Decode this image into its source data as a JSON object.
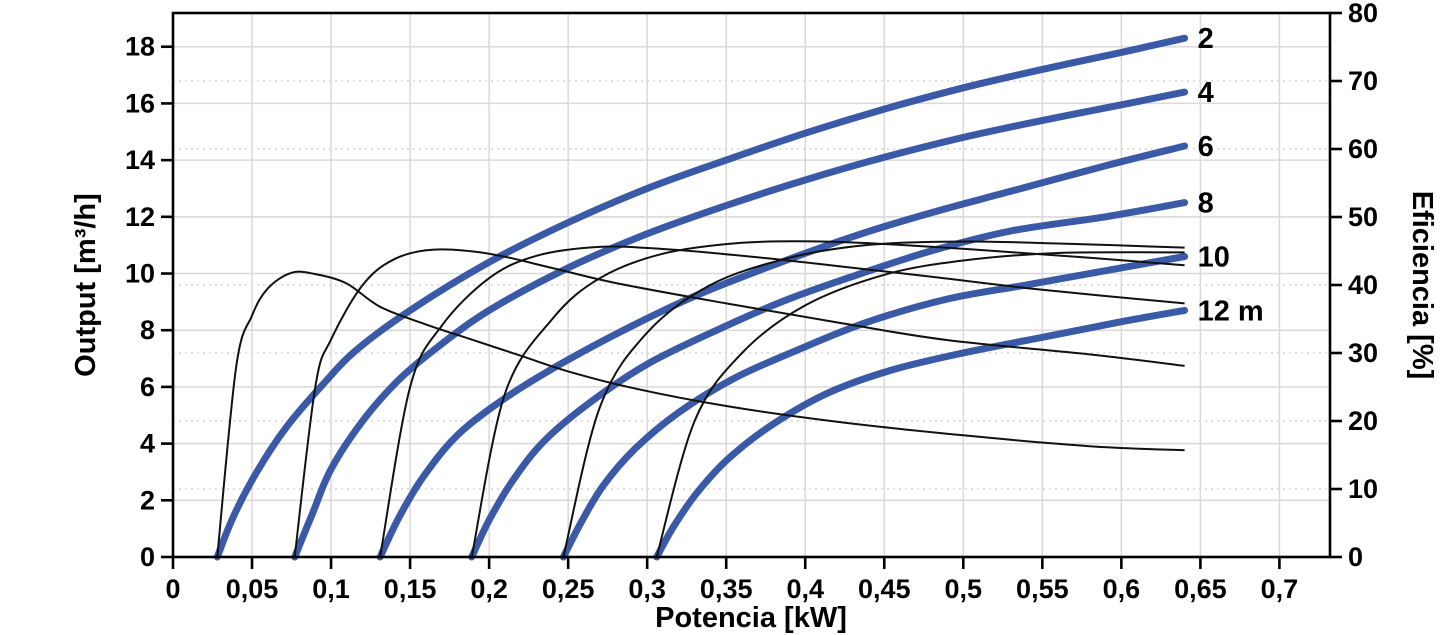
{
  "chart_data": {
    "type": "line",
    "title": "",
    "x": {
      "title": "Potencia [kW]",
      "min": 0,
      "max": 0.732,
      "tick_values": [
        0,
        0.05,
        0.1,
        0.15,
        0.2,
        0.25,
        0.3,
        0.35,
        0.4,
        0.45,
        0.5,
        0.55,
        0.6,
        0.65,
        0.7
      ],
      "tick_labels": [
        "0",
        "0,05",
        "0,1",
        "0,15",
        "0,2",
        "0,25",
        "0,3",
        "0,35",
        "0,4",
        "0,45",
        "0,5",
        "0,55",
        "0,6",
        "0,65",
        "0,7"
      ]
    },
    "y_left": {
      "title": "Output [m³/h]",
      "min": 0,
      "max": 19.19,
      "tick_values": [
        0,
        2,
        4,
        6,
        8,
        10,
        12,
        14,
        16,
        18
      ],
      "tick_labels": [
        "0",
        "2",
        "4",
        "6",
        "8",
        "10",
        "12",
        "14",
        "16",
        "18"
      ]
    },
    "y_right": {
      "title": "Eficiencia [%]",
      "min": 0,
      "max": 80,
      "tick_values": [
        0,
        10,
        20,
        30,
        40,
        50,
        60,
        70,
        80
      ],
      "tick_labels": [
        "0",
        "10",
        "20",
        "30",
        "40",
        "50",
        "60",
        "70",
        "80"
      ]
    },
    "grid": {
      "vertical_x_values": [
        0.05,
        0.1,
        0.15,
        0.2,
        0.25,
        0.3,
        0.35,
        0.4,
        0.45,
        0.5,
        0.55,
        0.6,
        0.65,
        0.7
      ],
      "horizontal_solid_left_values": [
        2,
        4,
        6,
        8,
        10,
        12,
        14,
        16,
        18
      ],
      "horizontal_dotted_right_values": [
        10,
        20,
        30,
        40,
        50,
        60,
        70
      ]
    },
    "pump_curves": [
      {
        "label": "2",
        "head_m": 2,
        "points": [
          [
            0.028,
            0
          ],
          [
            0.038,
            1.4
          ],
          [
            0.053,
            3.0
          ],
          [
            0.072,
            4.6
          ],
          [
            0.095,
            6.1
          ],
          [
            0.116,
            7.3
          ],
          [
            0.15,
            8.7
          ],
          [
            0.2,
            10.4
          ],
          [
            0.25,
            11.8
          ],
          [
            0.3,
            13.0
          ],
          [
            0.35,
            14.0
          ],
          [
            0.4,
            14.95
          ],
          [
            0.45,
            15.8
          ],
          [
            0.5,
            16.55
          ],
          [
            0.55,
            17.2
          ],
          [
            0.6,
            17.8
          ],
          [
            0.64,
            18.3
          ]
        ]
      },
      {
        "label": "4",
        "head_m": 4,
        "points": [
          [
            0.077,
            0
          ],
          [
            0.088,
            1.5
          ],
          [
            0.1,
            3.1
          ],
          [
            0.12,
            4.8
          ],
          [
            0.142,
            6.2
          ],
          [
            0.165,
            7.3
          ],
          [
            0.2,
            8.7
          ],
          [
            0.25,
            10.2
          ],
          [
            0.3,
            11.4
          ],
          [
            0.35,
            12.4
          ],
          [
            0.4,
            13.3
          ],
          [
            0.45,
            14.1
          ],
          [
            0.5,
            14.8
          ],
          [
            0.55,
            15.4
          ],
          [
            0.6,
            15.95
          ],
          [
            0.64,
            16.4
          ]
        ]
      },
      {
        "label": "6",
        "head_m": 6,
        "points": [
          [
            0.131,
            0
          ],
          [
            0.143,
            1.4
          ],
          [
            0.158,
            2.8
          ],
          [
            0.18,
            4.3
          ],
          [
            0.21,
            5.6
          ],
          [
            0.245,
            6.8
          ],
          [
            0.285,
            8.0
          ],
          [
            0.33,
            9.2
          ],
          [
            0.38,
            10.3
          ],
          [
            0.43,
            11.3
          ],
          [
            0.48,
            12.15
          ],
          [
            0.53,
            12.9
          ],
          [
            0.59,
            13.8
          ],
          [
            0.64,
            14.5
          ]
        ]
      },
      {
        "label": "8",
        "head_m": 8,
        "points": [
          [
            0.189,
            0
          ],
          [
            0.2,
            1.3
          ],
          [
            0.215,
            2.7
          ],
          [
            0.235,
            4.1
          ],
          [
            0.265,
            5.5
          ],
          [
            0.3,
            6.8
          ],
          [
            0.34,
            7.9
          ],
          [
            0.385,
            9.0
          ],
          [
            0.43,
            9.9
          ],
          [
            0.48,
            10.8
          ],
          [
            0.53,
            11.5
          ],
          [
            0.59,
            12.0
          ],
          [
            0.64,
            12.5
          ]
        ]
      },
      {
        "label": "10",
        "head_m": 10,
        "points": [
          [
            0.247,
            0
          ],
          [
            0.258,
            1.2
          ],
          [
            0.272,
            2.5
          ],
          [
            0.292,
            3.8
          ],
          [
            0.32,
            5.1
          ],
          [
            0.355,
            6.3
          ],
          [
            0.395,
            7.3
          ],
          [
            0.44,
            8.3
          ],
          [
            0.49,
            9.1
          ],
          [
            0.54,
            9.6
          ],
          [
            0.59,
            10.1
          ],
          [
            0.64,
            10.6
          ]
        ]
      },
      {
        "label": "12 m",
        "head_m": 12,
        "points": [
          [
            0.306,
            0
          ],
          [
            0.317,
            1.1
          ],
          [
            0.332,
            2.3
          ],
          [
            0.352,
            3.5
          ],
          [
            0.38,
            4.7
          ],
          [
            0.415,
            5.8
          ],
          [
            0.455,
            6.6
          ],
          [
            0.5,
            7.2
          ],
          [
            0.55,
            7.75
          ],
          [
            0.6,
            8.3
          ],
          [
            0.64,
            8.7
          ]
        ]
      }
    ],
    "efficiency_curves": [
      {
        "head_m": 2,
        "points": [
          [
            0.028,
            0
          ],
          [
            0.04,
            28
          ],
          [
            0.05,
            35.5
          ],
          [
            0.06,
            39.5
          ],
          [
            0.075,
            41.8
          ],
          [
            0.09,
            41.6
          ],
          [
            0.11,
            40.2
          ],
          [
            0.131,
            36.8
          ],
          [
            0.16,
            34.2
          ],
          [
            0.19,
            31.9
          ],
          [
            0.22,
            29.6
          ],
          [
            0.25,
            27.3
          ],
          [
            0.29,
            24.9
          ],
          [
            0.35,
            22.2
          ],
          [
            0.42,
            19.9
          ],
          [
            0.5,
            17.9
          ],
          [
            0.58,
            16.3
          ],
          [
            0.64,
            15.7
          ]
        ]
      },
      {
        "head_m": 4,
        "points": [
          [
            0.077,
            0
          ],
          [
            0.09,
            25
          ],
          [
            0.1,
            32
          ],
          [
            0.12,
            40
          ],
          [
            0.14,
            43.8
          ],
          [
            0.165,
            45.2
          ],
          [
            0.2,
            44.6
          ],
          [
            0.24,
            42.5
          ],
          [
            0.28,
            40.3
          ],
          [
            0.35,
            37.3
          ],
          [
            0.42,
            34.5
          ],
          [
            0.49,
            31.9
          ],
          [
            0.58,
            29.8
          ],
          [
            0.64,
            28.1
          ]
        ]
      },
      {
        "head_m": 6,
        "points": [
          [
            0.131,
            0
          ],
          [
            0.15,
            25
          ],
          [
            0.17,
            34
          ],
          [
            0.2,
            41
          ],
          [
            0.23,
            44.3
          ],
          [
            0.27,
            45.6
          ],
          [
            0.31,
            45.3
          ],
          [
            0.36,
            44.3
          ],
          [
            0.42,
            42.8
          ],
          [
            0.48,
            41.2
          ],
          [
            0.55,
            39.3
          ],
          [
            0.64,
            37.3
          ]
        ]
      },
      {
        "head_m": 8,
        "points": [
          [
            0.189,
            0
          ],
          [
            0.21,
            24
          ],
          [
            0.24,
            35
          ],
          [
            0.27,
            41
          ],
          [
            0.31,
            44.6
          ],
          [
            0.36,
            46.2
          ],
          [
            0.41,
            46.4
          ],
          [
            0.46,
            45.9
          ],
          [
            0.52,
            45.0
          ],
          [
            0.58,
            44.0
          ],
          [
            0.64,
            42.9
          ]
        ]
      },
      {
        "head_m": 10,
        "points": [
          [
            0.247,
            0
          ],
          [
            0.27,
            22
          ],
          [
            0.3,
            33
          ],
          [
            0.34,
            40
          ],
          [
            0.39,
            44
          ],
          [
            0.44,
            45.9
          ],
          [
            0.5,
            46.4
          ],
          [
            0.56,
            46.1
          ],
          [
            0.64,
            45.5
          ]
        ]
      },
      {
        "head_m": 12,
        "points": [
          [
            0.306,
            0
          ],
          [
            0.33,
            20
          ],
          [
            0.36,
            30
          ],
          [
            0.4,
            37
          ],
          [
            0.45,
            41.5
          ],
          [
            0.5,
            43.6
          ],
          [
            0.56,
            44.7
          ],
          [
            0.64,
            44.8
          ]
        ]
      }
    ],
    "colors": {
      "pump_curve": "#3A5AA8",
      "efficiency_curve": "#111111",
      "grid_solid": "#d9d9d9",
      "grid_dotted": "#d4d4d4",
      "axis": "#000000",
      "text": "#000000",
      "background": "#ffffff"
    },
    "legend_position": "none",
    "grid_on": true
  }
}
